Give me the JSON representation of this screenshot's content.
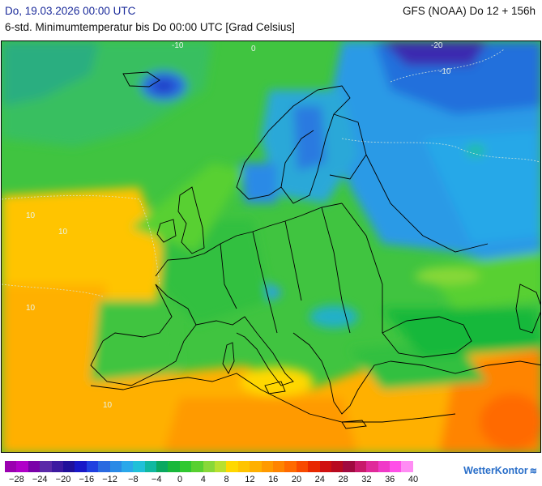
{
  "header": {
    "date": "Do, 19.03.2026 00:00 UTC",
    "model": "GFS (NOAA) Do 12 + 156h",
    "subtitle": "6-std. Minimumtemperatur bis Do 00:00 UTC [Grad Celsius]"
  },
  "map": {
    "contour_labels": [
      "-20",
      "-10",
      "0",
      "10"
    ]
  },
  "legend": {
    "colors": [
      "#9a00b0",
      "#b000c8",
      "#7a00a8",
      "#5a2aa8",
      "#3c1aa0",
      "#20109a",
      "#1818c8",
      "#2040e0",
      "#2a6ae0",
      "#2a8ae6",
      "#2aa8ea",
      "#20c0d8",
      "#10b8a0",
      "#0aa860",
      "#18b83a",
      "#30c830",
      "#58d030",
      "#88d838",
      "#b8e030",
      "#ffd800",
      "#ffc400",
      "#ffb000",
      "#ff9a00",
      "#ff8400",
      "#ff6a00",
      "#f84a00",
      "#e82800",
      "#d01010",
      "#b80a20",
      "#a00a40",
      "#c81a6a",
      "#e02a9a",
      "#f03ac8",
      "#ff50e8",
      "#ff8cf4"
    ],
    "labels": [
      "−28",
      "−24",
      "−20",
      "−16",
      "−12",
      "−8",
      "−4",
      "0",
      "4",
      "8",
      "12",
      "16",
      "20",
      "24",
      "28",
      "32",
      "36",
      "40"
    ]
  },
  "brand": {
    "name": "WetterKontor"
  }
}
